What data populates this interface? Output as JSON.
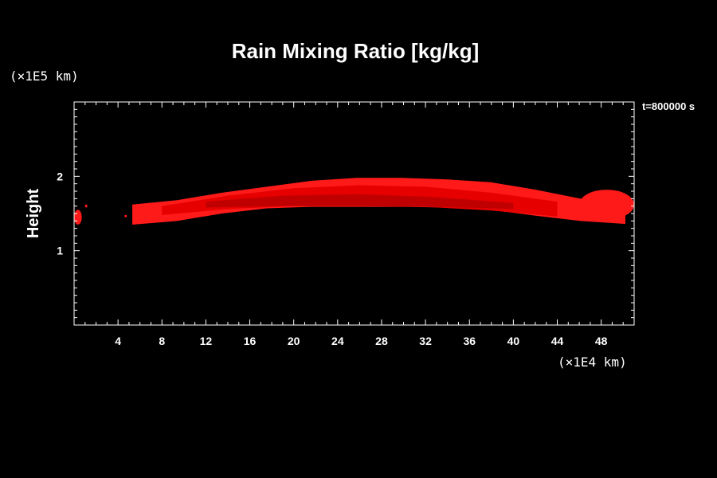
{
  "chart_data": {
    "type": "heatmap",
    "title": "Rain Mixing Ratio [kg/kg]",
    "ylabel": "Height",
    "xlabel": "",
    "x_unit_label": "(×1E4 km)",
    "y_unit_label": "(×1E5 km)",
    "time_label": "t=800000 s",
    "xlim": [
      0,
      51
    ],
    "ylim": [
      0,
      3
    ],
    "x_ticks": [
      "4",
      "8",
      "12",
      "16",
      "20",
      "24",
      "28",
      "32",
      "36",
      "40",
      "44",
      "48"
    ],
    "y_ticks": [
      "1",
      "2"
    ],
    "grid": false,
    "colors": {
      "light": "#ff1a1a",
      "mid": "#e60000",
      "dark": "#c00000",
      "background": "#000000"
    },
    "bands": [
      {
        "name": "main-band",
        "x": [
          5.3,
          50.2
        ],
        "y_top": [
          1.62,
          1.68,
          1.78,
          1.86,
          1.94,
          1.98,
          1.98,
          1.96,
          1.92,
          1.82,
          1.7,
          1.64
        ],
        "y_bottom": [
          1.35,
          1.4,
          1.5,
          1.57,
          1.59,
          1.59,
          1.59,
          1.58,
          1.55,
          1.47,
          1.4,
          1.36
        ]
      },
      {
        "name": "inner-band",
        "x": [
          8,
          44
        ],
        "y_top": [
          1.6,
          1.74,
          1.84,
          1.88,
          1.86,
          1.78,
          1.66
        ],
        "y_bottom": [
          1.48,
          1.56,
          1.6,
          1.6,
          1.59,
          1.54,
          1.46
        ]
      },
      {
        "name": "core-band",
        "x": [
          12,
          40
        ],
        "y_top": [
          1.66,
          1.74,
          1.76,
          1.72,
          1.64
        ],
        "y_bottom": [
          1.58,
          1.6,
          1.6,
          1.59,
          1.56
        ]
      }
    ],
    "blobs": [
      {
        "name": "left-edge-blob",
        "x": [
          0,
          0.7
        ],
        "y": [
          1.35,
          1.55
        ]
      },
      {
        "name": "small-blob-1",
        "x": [
          1,
          1.2
        ],
        "y": [
          1.58,
          1.62
        ]
      },
      {
        "name": "small-blob-2",
        "x": [
          4.6,
          4.8
        ],
        "y": [
          1.45,
          1.48
        ]
      },
      {
        "name": "right-hook",
        "x": [
          46,
          51
        ],
        "y": [
          1.42,
          1.82
        ]
      }
    ]
  }
}
